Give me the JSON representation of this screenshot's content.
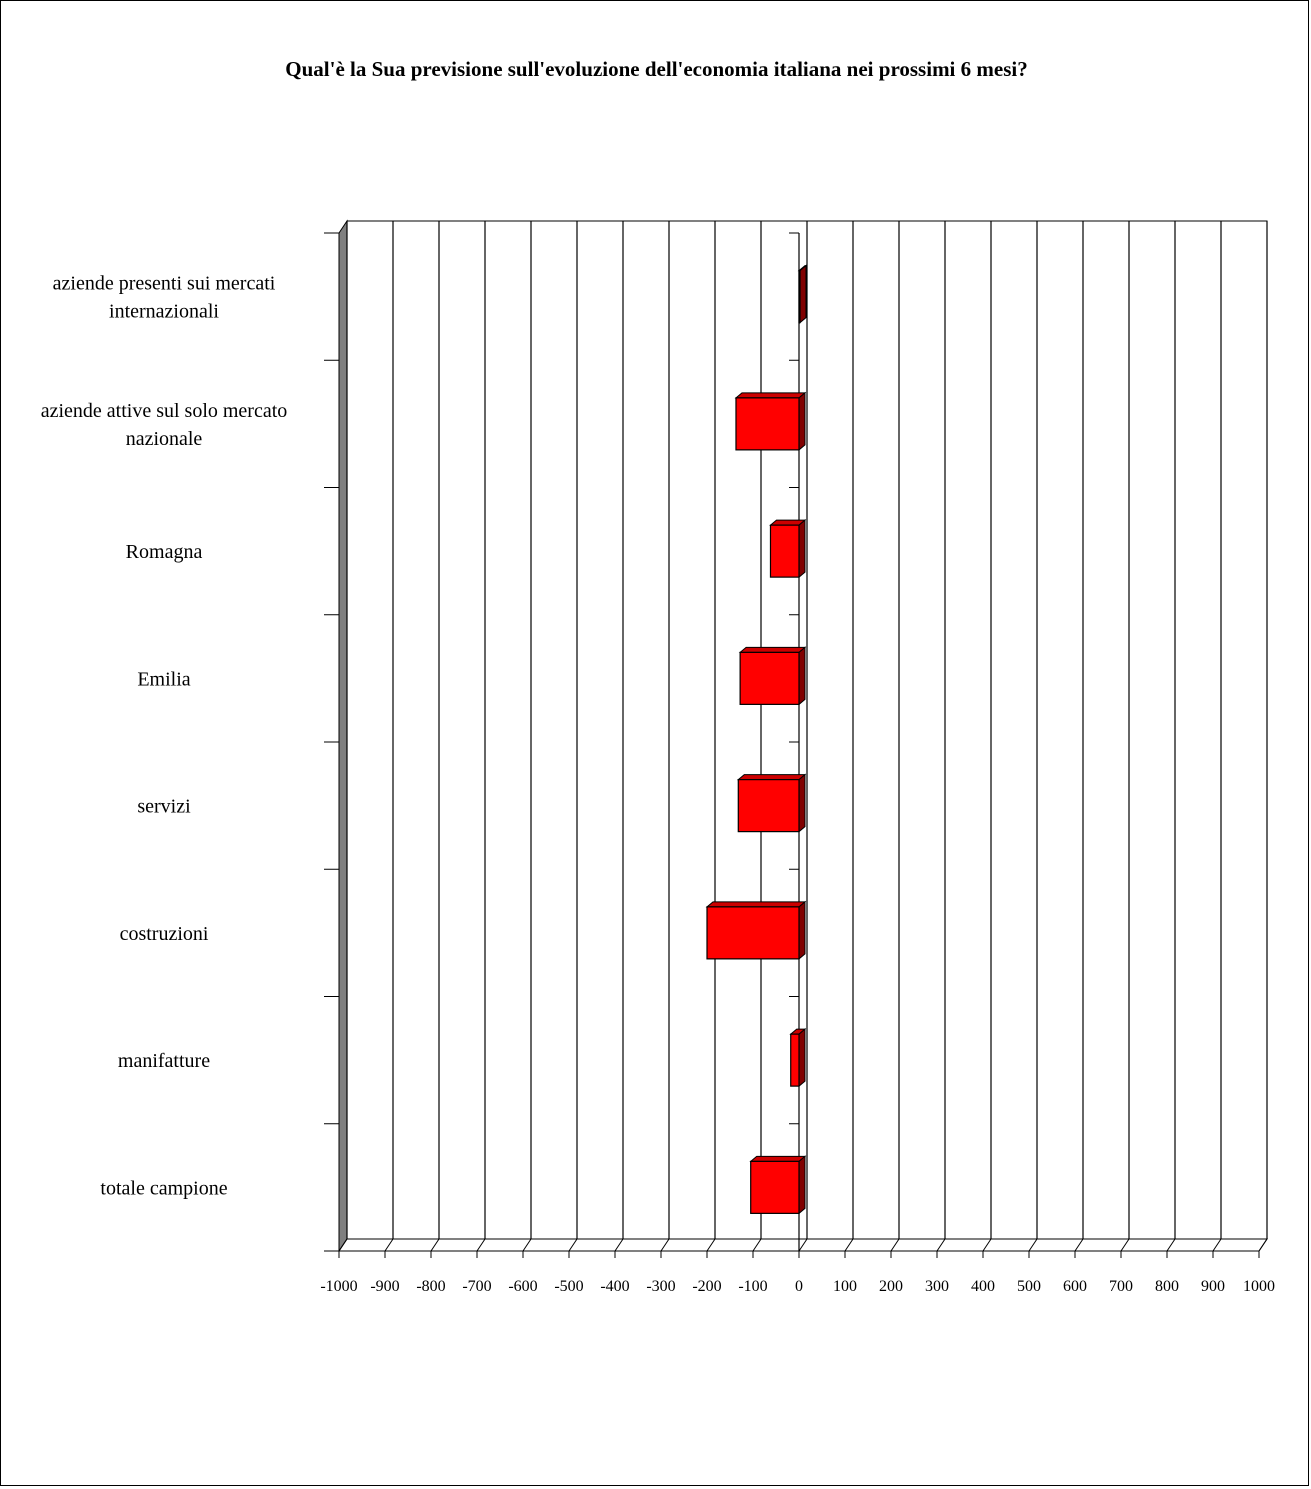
{
  "chart_data": {
    "type": "bar",
    "orientation": "horizontal",
    "title": "Qual'è la Sua previsione sull'evoluzione dell'economia italiana nei prossimi 6 mesi?",
    "xlabel": "",
    "ylabel": "",
    "categories": [
      "totale campione",
      "manifatture",
      "costruzioni",
      "servizi",
      "Emilia",
      "Romagna",
      "aziende attive sul solo mercato nazionale",
      "aziende presenti sui mercati internazionali"
    ],
    "category_lines": [
      [
        "totale campione"
      ],
      [
        "manifatture"
      ],
      [
        "costruzioni"
      ],
      [
        "servizi"
      ],
      [
        "Emilia"
      ],
      [
        "Romagna"
      ],
      [
        "aziende attive sul solo mercato",
        "nazionale"
      ],
      [
        "aziende presenti sui mercati",
        "internazionali"
      ]
    ],
    "values": [
      -105,
      -18,
      -200,
      -132,
      -128,
      -62,
      -137,
      0
    ],
    "xlim": [
      -1000,
      1000
    ],
    "xticks": [
      "-1000",
      "-900",
      "-800",
      "-700",
      "-600",
      "-500",
      "-400",
      "-300",
      "-200",
      "-100",
      "0",
      "100",
      "200",
      "300",
      "400",
      "500",
      "600",
      "700",
      "800",
      "900",
      "1000"
    ],
    "grid": "vertical",
    "legend": "none",
    "bar_color": "#ff0000",
    "style": "3d"
  }
}
